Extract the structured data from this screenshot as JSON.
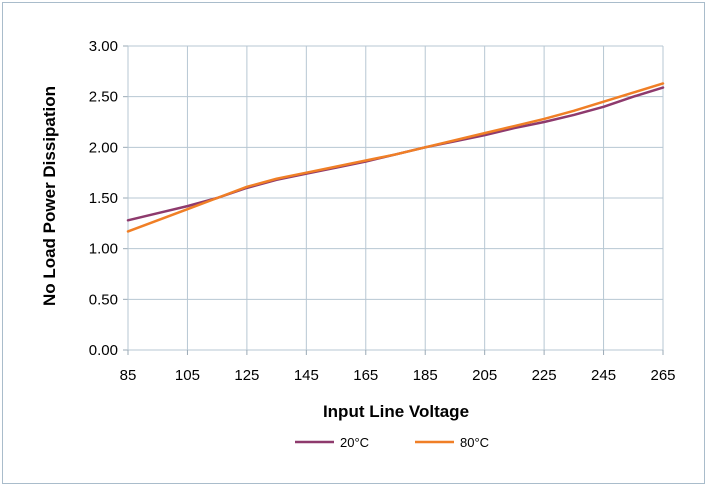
{
  "chart_data": {
    "type": "line",
    "title": "",
    "xlabel": "Input Line Voltage",
    "ylabel": "No Load Power Dissipation",
    "xlim": [
      85,
      265
    ],
    "ylim": [
      0,
      3
    ],
    "x_ticks": [
      85,
      105,
      125,
      145,
      165,
      185,
      205,
      225,
      245,
      265
    ],
    "y_ticks": [
      0,
      0.5,
      1,
      1.5,
      2,
      2.5,
      3
    ],
    "y_tick_labels": [
      "0.00",
      "0.50",
      "1.00",
      "1.50",
      "2.00",
      "2.50",
      "3.00"
    ],
    "x_tick_labels": [
      "85",
      "105",
      "125",
      "145",
      "165",
      "185",
      "205",
      "225",
      "245",
      "265"
    ],
    "grid": true,
    "legend_position": "bottom",
    "series": [
      {
        "name": "20°C",
        "color": "#8e3a6d",
        "x": [
          85,
          95,
          105,
          115,
          125,
          135,
          145,
          155,
          165,
          175,
          185,
          195,
          205,
          215,
          225,
          235,
          245,
          255,
          265
        ],
        "y": [
          1.28,
          1.35,
          1.42,
          1.5,
          1.6,
          1.68,
          1.74,
          1.8,
          1.86,
          1.93,
          2.0,
          2.06,
          2.12,
          2.19,
          2.25,
          2.32,
          2.4,
          2.5,
          2.59
        ]
      },
      {
        "name": "80°C",
        "color": "#f07f26",
        "x": [
          85,
          95,
          105,
          115,
          125,
          135,
          145,
          155,
          165,
          175,
          185,
          195,
          205,
          215,
          225,
          235,
          245,
          255,
          265
        ],
        "y": [
          1.17,
          1.28,
          1.39,
          1.5,
          1.61,
          1.69,
          1.75,
          1.81,
          1.87,
          1.93,
          2.0,
          2.07,
          2.14,
          2.21,
          2.28,
          2.36,
          2.45,
          2.54,
          2.63
        ]
      }
    ]
  }
}
